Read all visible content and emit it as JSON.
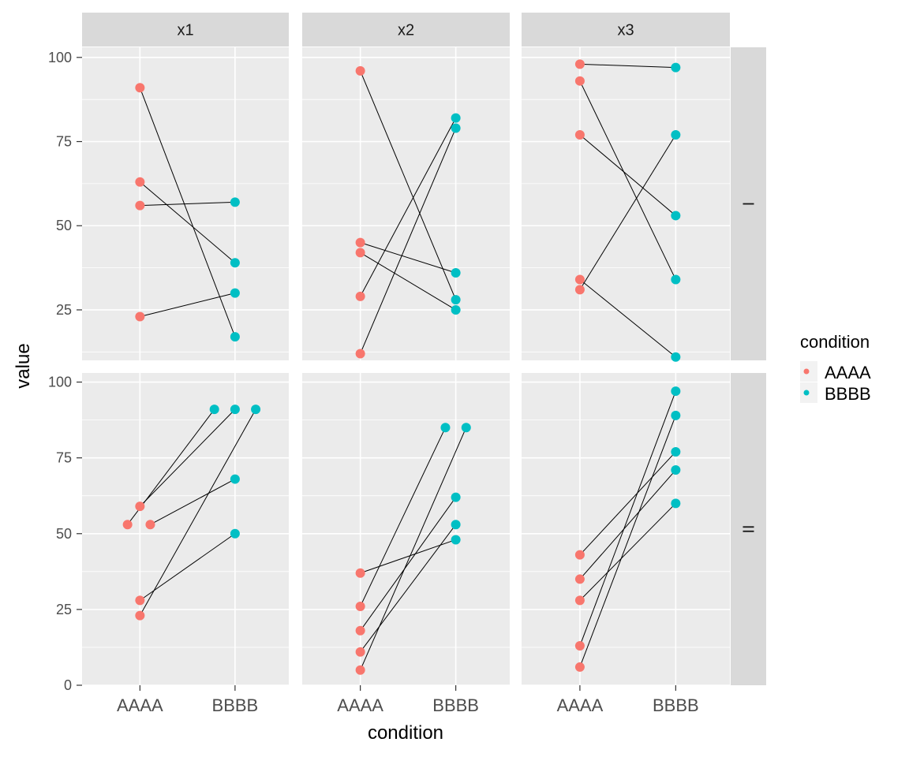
{
  "chart_data": {
    "type": "scatter",
    "xlabel": "condition",
    "ylabel": "value",
    "categories": [
      "AAAA",
      "BBBB"
    ],
    "col_facets": [
      "x1",
      "x2",
      "x3"
    ],
    "row_facets": [
      "I",
      "II"
    ],
    "row_ylim": [
      [
        10,
        103
      ],
      [
        0,
        103
      ]
    ],
    "row_yticks": [
      [
        25,
        50,
        75,
        100
      ],
      [
        0,
        25,
        50,
        75,
        100
      ]
    ],
    "legend": {
      "title": "condition",
      "position": "right",
      "entries": [
        {
          "label": "AAAA",
          "color": "#F8766D"
        },
        {
          "label": "BBBB",
          "color": "#00BFC4"
        }
      ]
    },
    "colors": {
      "AAAA": "#F8766D",
      "BBBB": "#00BFC4",
      "panel": "#EBEBEB",
      "strip": "#D9D9D9",
      "grid": "#FFFFFF",
      "line": "#000000"
    },
    "panels": [
      {
        "col": "x1",
        "row": "I",
        "pairs": [
          {
            "a": 91,
            "b": 17
          },
          {
            "a": 63,
            "b": 39
          },
          {
            "a": 56,
            "b": 57
          },
          {
            "a": 23,
            "b": 30
          }
        ]
      },
      {
        "col": "x2",
        "row": "I",
        "pairs": [
          {
            "a": 96,
            "b": 28
          },
          {
            "a": 45,
            "b": 36
          },
          {
            "a": 42,
            "b": 25
          },
          {
            "a": 29,
            "b": 82
          },
          {
            "a": 12,
            "b": 79
          }
        ]
      },
      {
        "col": "x3",
        "row": "I",
        "pairs": [
          {
            "a": 98,
            "b": 97
          },
          {
            "a": 93,
            "b": 34
          },
          {
            "a": 77,
            "b": 53
          },
          {
            "a": 34,
            "b": 11
          },
          {
            "a": 31,
            "b": 77
          }
        ]
      },
      {
        "col": "x1",
        "row": "II",
        "pairs": [
          {
            "a": 59,
            "b": 91
          },
          {
            "a": 53,
            "b": 91,
            "a_jitter": -0.06,
            "b_jitter": -0.1
          },
          {
            "a": 53,
            "b": 68,
            "a_jitter": 0.05
          },
          {
            "a": 28,
            "b": 50
          },
          {
            "a": 23,
            "b": 91,
            "b_jitter": 0.1
          }
        ]
      },
      {
        "col": "x2",
        "row": "II",
        "pairs": [
          {
            "a": 37,
            "b": 48
          },
          {
            "a": 26,
            "b": 85,
            "b_jitter": -0.05
          },
          {
            "a": 18,
            "b": 62
          },
          {
            "a": 11,
            "b": 53
          },
          {
            "a": 5,
            "b": 85,
            "b_jitter": 0.05
          }
        ]
      },
      {
        "col": "x3",
        "row": "II",
        "pairs": [
          {
            "a": 43,
            "b": 77
          },
          {
            "a": 35,
            "b": 71
          },
          {
            "a": 28,
            "b": 60
          },
          {
            "a": 13,
            "b": 97
          },
          {
            "a": 6,
            "b": 89
          }
        ]
      }
    ]
  }
}
